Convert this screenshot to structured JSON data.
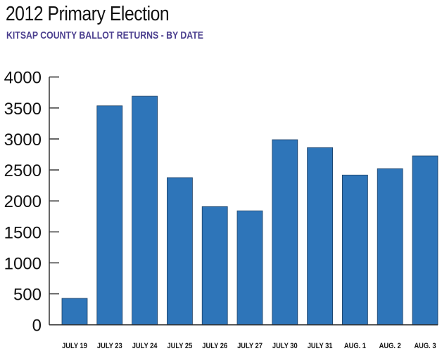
{
  "chart_data": {
    "type": "bar",
    "title": "2012 Primary Election",
    "subtitle": "KITSAP COUNTY BALLOT RETURNS - BY DATE",
    "xlabel": "",
    "ylabel": "",
    "ylim": [
      0,
      4000
    ],
    "yticks": [
      0,
      500,
      1000,
      1500,
      2000,
      2500,
      3000,
      3500,
      4000
    ],
    "categories": [
      "JULY 19",
      "JULY 23",
      "JULY 24",
      "JULY 25",
      "JULY 26",
      "JULY 27",
      "JULY 30",
      "JULY 31",
      "AUG. 1",
      "AUG. 2",
      "AUG. 3"
    ],
    "values": [
      427,
      3535,
      3690,
      2376,
      1908,
      1840,
      2988,
      2860,
      2418,
      2520,
      2727
    ],
    "grid": false,
    "bar_color": "#2e75b9",
    "title_color": "#111111",
    "subtitle_color": "#4b3f8f"
  }
}
